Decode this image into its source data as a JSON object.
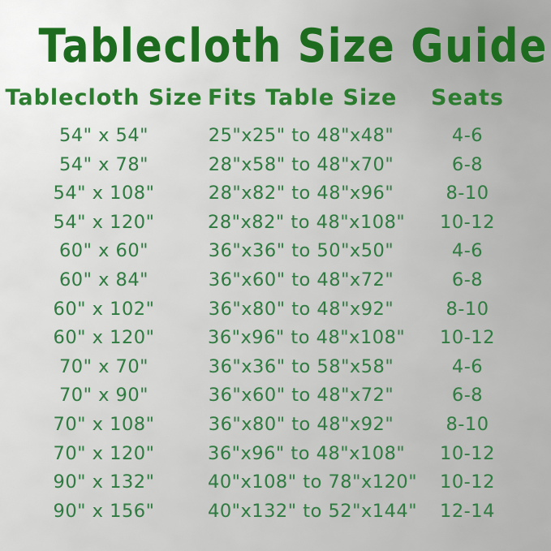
{
  "title": "Tablecloth Size Guide",
  "table": {
    "headers": [
      "Tablecloth Size",
      "Fits Table Size",
      "Seats"
    ],
    "rows": [
      [
        "54\" x 54\"",
        "25\"x25\" to 48\"x48\"",
        "4-6"
      ],
      [
        "54\" x 78\"",
        "28\"x58\" to 48\"x70\"",
        "6-8"
      ],
      [
        "54\" x 108\"",
        "28\"x82\" to 48\"x96\"",
        "8-10"
      ],
      [
        "54\" x 120\"",
        "28\"x82\" to 48\"x108\"",
        "10-12"
      ],
      [
        "60\" x 60\"",
        "36\"x36\" to 50\"x50\"",
        "4-6"
      ],
      [
        "60\" x 84\"",
        "36\"x60\" to 48\"x72\"",
        "6-8"
      ],
      [
        "60\" x 102\"",
        "36\"x80\" to 48\"x92\"",
        "8-10"
      ],
      [
        "60\" x 120\"",
        "36\"x96\" to 48\"x108\"",
        "10-12"
      ],
      [
        "70\" x 70\"",
        "36\"x36\" to 58\"x58\"",
        "4-6"
      ],
      [
        "70\" x 90\"",
        "36\"x60\" to 48\"x72\"",
        "6-8"
      ],
      [
        "70\" x 108\"",
        "36\"x80\" to 48\"x92\"",
        "8-10"
      ],
      [
        "70\" x 120\"",
        "36\"x96\" to 48\"x108\"",
        "10-12"
      ],
      [
        "90\" x 132\"",
        "40\"x108\" to 78\"x120\"",
        "10-12"
      ],
      [
        "90\" x 156\"",
        "40\"x132\" to 52\"x144\"",
        "12-14"
      ]
    ]
  },
  "colors": {
    "title_green": "#1d6b1e",
    "header_green": "#2b7c2e",
    "data_green": "#2f7a40",
    "background_silver": "#cfcfcd"
  }
}
